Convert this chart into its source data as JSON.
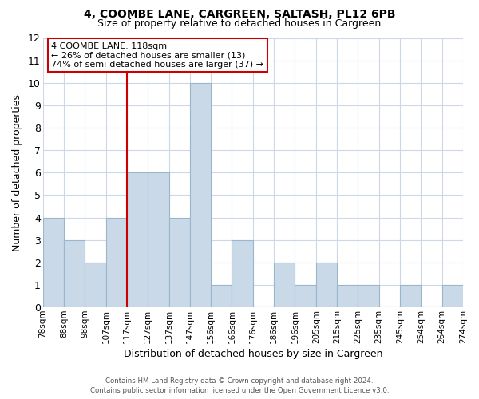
{
  "title": "4, COOMBE LANE, CARGREEN, SALTASH, PL12 6PB",
  "subtitle": "Size of property relative to detached houses in Cargreen",
  "xlabel": "Distribution of detached houses by size in Cargreen",
  "ylabel": "Number of detached properties",
  "bin_labels": [
    "78sqm",
    "88sqm",
    "98sqm",
    "107sqm",
    "117sqm",
    "127sqm",
    "137sqm",
    "147sqm",
    "156sqm",
    "166sqm",
    "176sqm",
    "186sqm",
    "196sqm",
    "205sqm",
    "215sqm",
    "225sqm",
    "235sqm",
    "245sqm",
    "254sqm",
    "264sqm",
    "274sqm"
  ],
  "bin_counts": [
    4,
    3,
    2,
    4,
    6,
    6,
    4,
    10,
    1,
    3,
    0,
    2,
    1,
    2,
    1,
    1,
    0,
    1,
    0,
    1
  ],
  "bar_color": "#c9d9e8",
  "bar_edge_color": "#9ab5cc",
  "vline_x_index": 4,
  "vline_color": "#cc0000",
  "annotation_line1": "4 COOMBE LANE: 118sqm",
  "annotation_line2": "← 26% of detached houses are smaller (13)",
  "annotation_line3": "74% of semi-detached houses are larger (37) →",
  "annotation_box_color": "#ffffff",
  "annotation_box_edge": "#cc0000",
  "ylim": [
    0,
    12
  ],
  "yticks": [
    0,
    1,
    2,
    3,
    4,
    5,
    6,
    7,
    8,
    9,
    10,
    11,
    12
  ],
  "background_color": "#ffffff",
  "grid_color": "#ccd8e8",
  "footer_line1": "Contains HM Land Registry data © Crown copyright and database right 2024.",
  "footer_line2": "Contains public sector information licensed under the Open Government Licence v3.0."
}
